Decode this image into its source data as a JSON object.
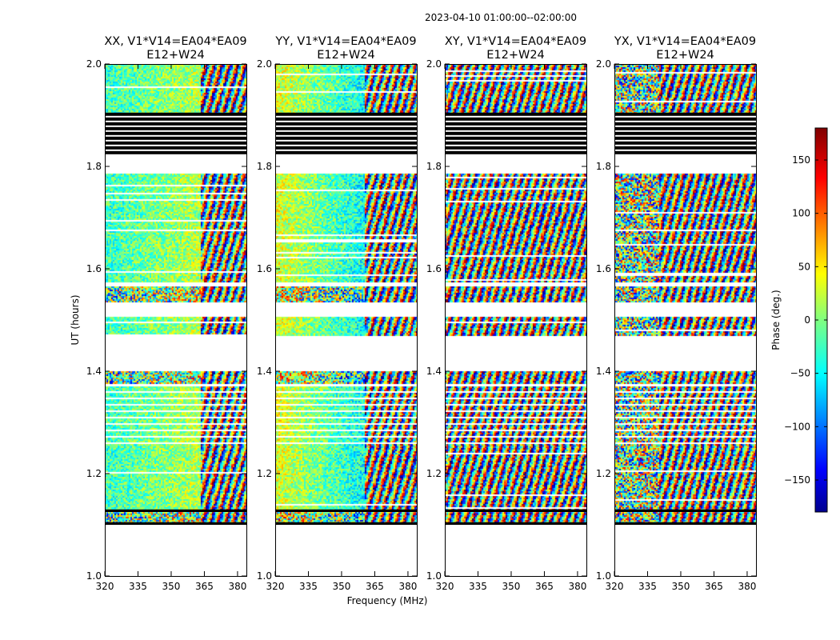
{
  "figure": {
    "suptitle": "2023-04-10  01:00:00--02:00:00"
  },
  "chart_data": {
    "type": "heatmap",
    "title": "2023-04-10  01:00:00--02:00:00",
    "xlabel": "Frequency (MHz)",
    "ylabel": "UT (hours)",
    "xlim": [
      320,
      384
    ],
    "ylim": [
      1.0,
      2.0
    ],
    "xticks": [
      "320",
      "335",
      "350",
      "365",
      "380"
    ],
    "xtick_values": [
      320,
      335,
      350,
      365,
      380
    ],
    "yticks": [
      "1.0",
      "1.2",
      "1.4",
      "1.6",
      "1.8",
      "2.0"
    ],
    "ytick_values": [
      1.0,
      1.2,
      1.4,
      1.6,
      1.8,
      2.0
    ],
    "colorbar": {
      "label": "Phase (deg.)",
      "range": [
        -180,
        180
      ],
      "ticks": [
        "−150",
        "−100",
        "−50",
        "0",
        "50",
        "100",
        "150"
      ],
      "tick_values": [
        -150,
        -100,
        -50,
        0,
        50,
        100,
        150
      ],
      "colormap": "jet"
    },
    "flagged_bands_ut": [
      [
        1.1,
        1.105
      ],
      [
        1.125,
        1.13
      ],
      [
        1.825,
        1.905
      ]
    ],
    "data_blocks_ut": [
      {
        "from": 1.105,
        "to": 1.125,
        "kind": "noisy"
      },
      {
        "from": 1.13,
        "to": 1.255,
        "kind": "smooth"
      },
      {
        "from": 1.255,
        "to": 1.37,
        "kind": "striped"
      },
      {
        "from": 1.375,
        "to": 1.4,
        "kind": "noisy"
      },
      {
        "from": 1.47,
        "to": 1.505,
        "kind": "smooth"
      },
      {
        "from": 1.535,
        "to": 1.565,
        "kind": "noisy"
      },
      {
        "from": 1.575,
        "to": 1.785,
        "kind": "smooth"
      },
      {
        "from": 1.905,
        "to": 2.0,
        "kind": "smooth"
      }
    ],
    "panels": [
      {
        "name": "XX",
        "title_line1": "XX, V1*V14=EA04*EA09",
        "title_line2": "E12+W24",
        "mean_phase_low_freq": -25,
        "mean_phase_high_freq": 40,
        "coherent_until_mhz": 363,
        "noise": 0.25
      },
      {
        "name": "YY",
        "title_line1": "YY, V1*V14=EA04*EA09",
        "title_line2": "E12+W24",
        "mean_phase_low_freq": 35,
        "mean_phase_high_freq": -90,
        "coherent_until_mhz": 360,
        "noise": 0.25
      },
      {
        "name": "XY",
        "title_line1": "XY, V1*V14=EA04*EA09",
        "title_line2": "E12+W24",
        "mean_phase_low_freq": 0,
        "mean_phase_high_freq": 0,
        "coherent_until_mhz": 320,
        "noise": 1.0
      },
      {
        "name": "YX",
        "title_line1": "YX, V1*V14=EA04*EA09",
        "title_line2": "E12+W24",
        "mean_phase_low_freq": -10,
        "mean_phase_high_freq": 10,
        "coherent_until_mhz": 340,
        "noise": 0.8
      }
    ]
  }
}
